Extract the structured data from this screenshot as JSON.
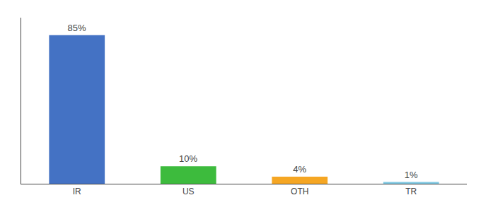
{
  "chart_data": {
    "type": "bar",
    "categories": [
      "IR",
      "US",
      "OTH",
      "TR"
    ],
    "values": [
      85,
      10,
      4,
      1
    ],
    "value_labels": [
      "85%",
      "10%",
      "4%",
      "1%"
    ],
    "colors": [
      "#4472c4",
      "#3dbb3d",
      "#f5a623",
      "#7ec8e3"
    ],
    "ylim": [
      0,
      95
    ],
    "data_labels": true,
    "tick_labels": "x",
    "grid": false
  }
}
